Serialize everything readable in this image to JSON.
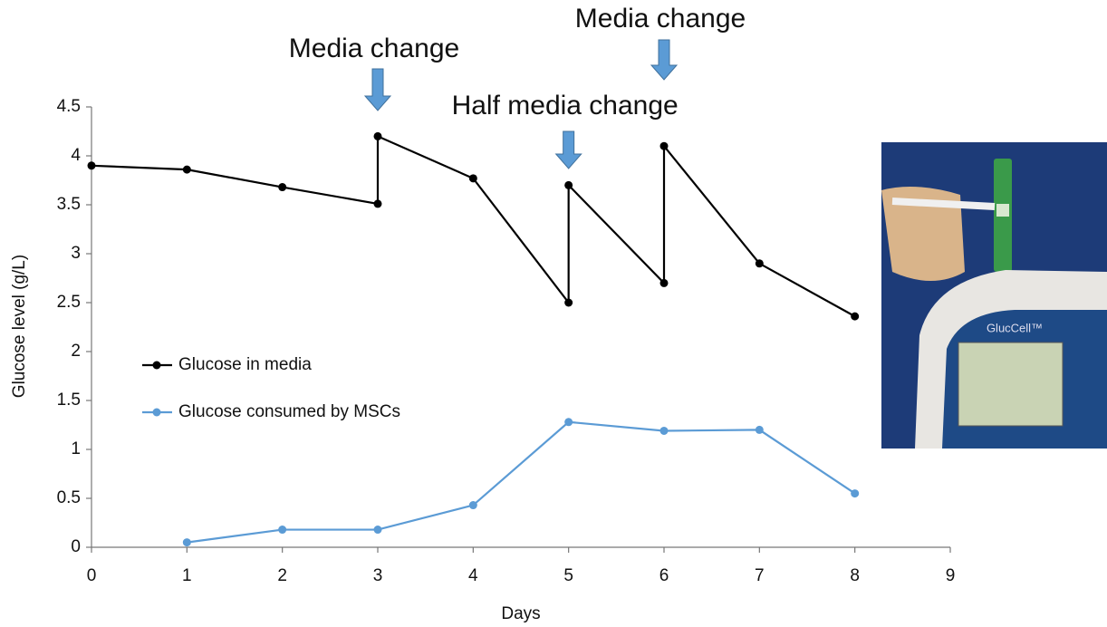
{
  "chart_data": {
    "type": "line",
    "xlabel": "Days",
    "ylabel": "Glucose level (g/L)",
    "xlim": [
      0,
      9
    ],
    "xticks": [
      0,
      1,
      2,
      3,
      4,
      5,
      6,
      7,
      8,
      9
    ],
    "ylim": [
      0,
      4.5
    ],
    "yticks": [
      0,
      0.5,
      1,
      1.5,
      2,
      2.5,
      3,
      3.5,
      4,
      4.5
    ],
    "grid": false,
    "legend": "lower left",
    "series": [
      {
        "name": "Glucose in media",
        "color": "#000000",
        "x": [
          0,
          1,
          2,
          3,
          3,
          4,
          5,
          5,
          6,
          6,
          7,
          8
        ],
        "values": [
          3.9,
          3.86,
          3.68,
          3.51,
          4.2,
          3.77,
          2.5,
          3.7,
          2.7,
          4.1,
          2.9,
          2.36
        ]
      },
      {
        "name": "Glucose consumed by MSCs",
        "color": "#5b9bd5",
        "x": [
          1,
          2,
          3,
          4,
          5,
          6,
          7,
          8
        ],
        "values": [
          0.05,
          0.18,
          0.18,
          0.43,
          1.28,
          1.19,
          1.2,
          0.55
        ]
      }
    ],
    "annotations": [
      {
        "text": "Media change",
        "x": 3
      },
      {
        "text": "Half media change",
        "x": 5
      },
      {
        "text": "Media change",
        "x": 6
      }
    ],
    "photo_label": "GlucCell™"
  }
}
